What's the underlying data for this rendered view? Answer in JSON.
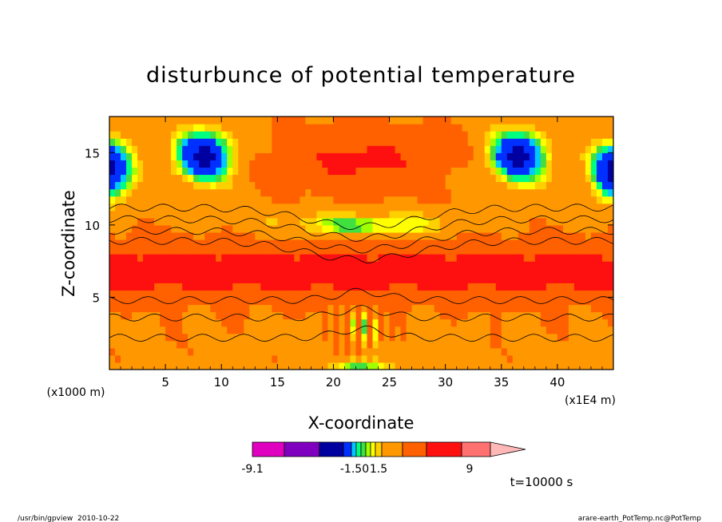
{
  "chart_data": {
    "type": "heatmap",
    "title": "disturbunce of potential temperature",
    "xlabel": "X-coordinate",
    "ylabel": "Z-coordinate",
    "x_scale_note": "(x1E4 m)",
    "y_scale_note": "(x1000 m)",
    "xlim": [
      0,
      45
    ],
    "ylim": [
      0,
      17.5
    ],
    "x_ticks": [
      5,
      10,
      15,
      20,
      25,
      30,
      35,
      40
    ],
    "y_ticks": [
      5,
      10,
      15
    ],
    "colorbar": {
      "tick_labels": [
        "-9.1",
        "-1.50",
        "1.5",
        "9"
      ],
      "colors": [
        "#e000c0",
        "#8000c0",
        "#0000a0",
        "#0030ff",
        "#00c8ff",
        "#00ff80",
        "#40e040",
        "#a0ff00",
        "#ffff00",
        "#ffd000",
        "#ff9800",
        "#ff6000",
        "#ff1010",
        "#ff7070",
        "#ffb8b8"
      ]
    },
    "time_label": "t=10000 s"
  },
  "footer": {
    "left": "/usr/bin/gpview  2010-10-22",
    "right": "arare-earth_PotTemp.nc@PotTemp"
  }
}
